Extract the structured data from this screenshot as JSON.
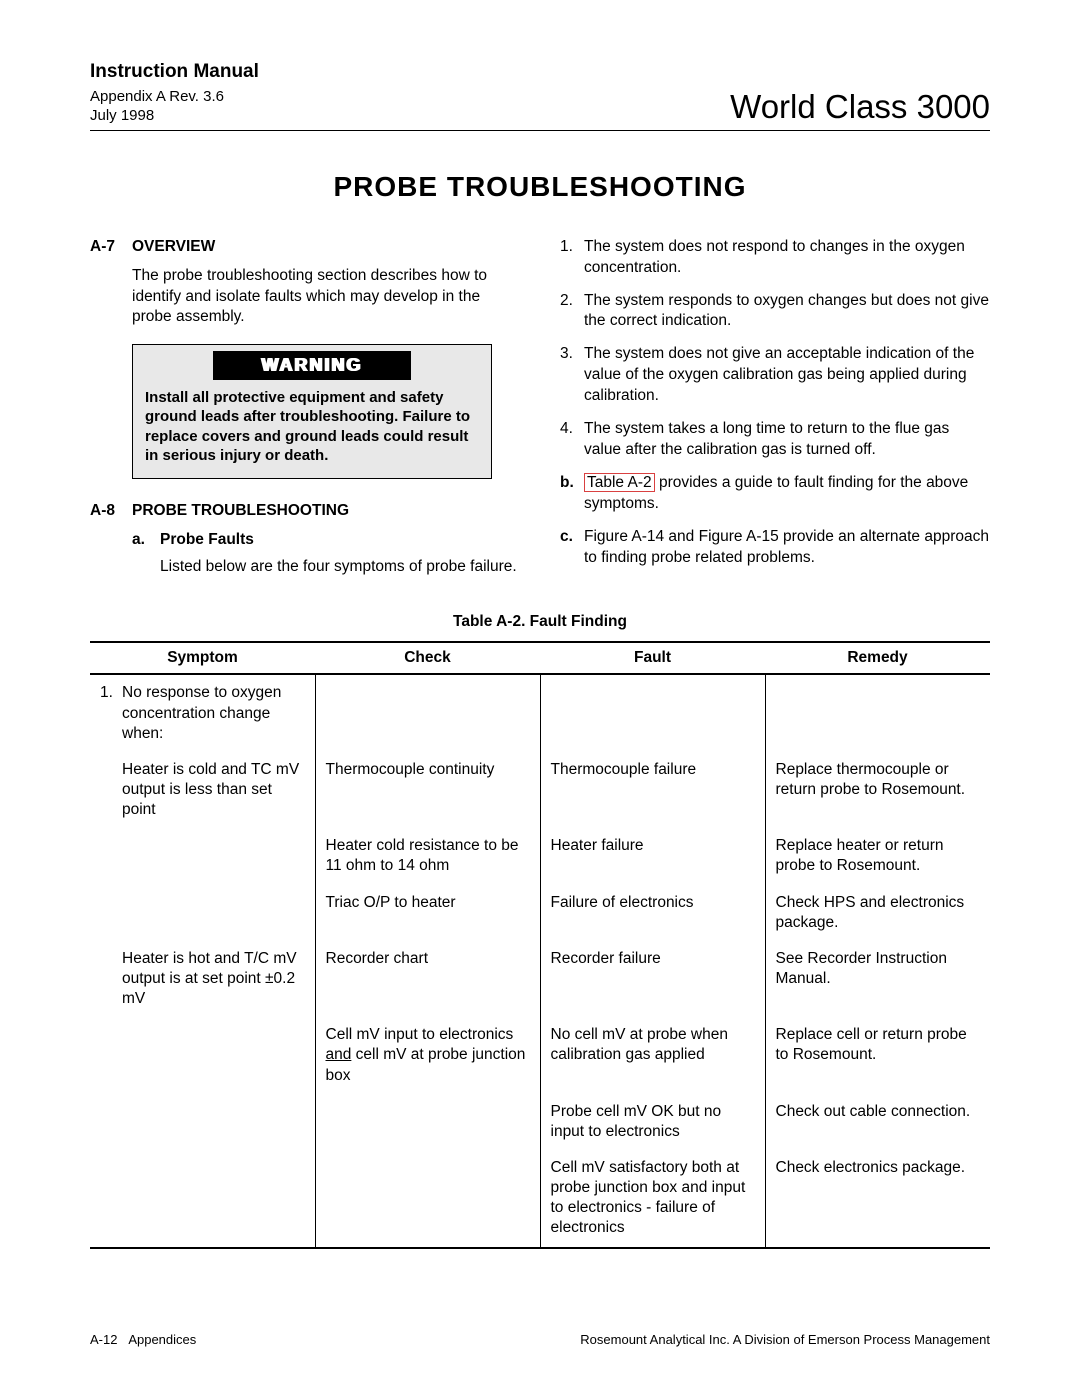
{
  "header": {
    "manual": "Instruction Manual",
    "appendix": "Appendix A  Rev. 3.6",
    "date": "July 1998",
    "product": "World Class 3000"
  },
  "title": "PROBE  TROUBLESHOOTING",
  "secA7": {
    "num": "A-7",
    "title": "OVERVIEW",
    "body": "The probe troubleshooting section describes how to identify and isolate faults which may develop in the probe assembly."
  },
  "warning": {
    "label": "WARNING",
    "body": "Install all protective equipment and safety ground leads after troubleshooting. Failure to replace covers and ground leads could result in serious injury or death."
  },
  "secA8": {
    "num": "A-8",
    "title": "PROBE  TROUBLESHOOTING",
    "sub_a_label": "a.",
    "sub_a_title": "Probe Faults",
    "sub_a_body": "Listed below are the four symptoms of probe failure."
  },
  "symptoms": {
    "items": [
      {
        "n": "1.",
        "t": "The system does not respond to changes in the oxygen concentration."
      },
      {
        "n": "2.",
        "t": "The system responds to oxygen changes but does not give the correct indication."
      },
      {
        "n": "3.",
        "t": "The system does not give an acceptable indication of the value of the oxygen calibration gas being applied during calibration."
      },
      {
        "n": "4.",
        "t": "The system takes a long time to return to the flue gas value after the calibration gas is turned off."
      }
    ]
  },
  "notes": {
    "b_label": "b.",
    "b_ref": "Table A-2",
    "b_rest": " provides a guide to fault finding for the above symptoms.",
    "c_label": "c.",
    "c_text": "Figure A-14 and Figure A-15 provide an alternate approach to finding probe related problems."
  },
  "table": {
    "caption": "Table A-2.  Fault Finding",
    "headers": {
      "c1": "Symptom",
      "c2": "Check",
      "c3": "Fault",
      "c4": "Remedy"
    },
    "col_widths": [
      "25%",
      "25%",
      "25%",
      "25%"
    ],
    "rows": [
      {
        "symptom_n": "1.",
        "symptom": "No response to oxygen concentration change when:",
        "check": "",
        "fault": "",
        "remedy": ""
      },
      {
        "symptom_indent": "Heater is cold and TC mV output is less than set point",
        "check": "Thermocouple continuity",
        "fault": "Thermocouple failure",
        "remedy": "Replace thermocouple or return probe to Rosemount."
      },
      {
        "symptom_indent": "",
        "check": "Heater cold resistance to be 11 ohm to 14 ohm",
        "fault": "Heater failure",
        "remedy": "Replace heater or return probe to Rosemount."
      },
      {
        "symptom_indent": "",
        "check": "Triac O/P to heater",
        "fault": "Failure of electronics",
        "remedy": "Check HPS and electronics package."
      },
      {
        "symptom_indent": "Heater is hot and T/C mV output is at set point ±0.2 mV",
        "check": "Recorder chart",
        "fault": "Recorder failure",
        "remedy": "See Recorder Instruction Manual."
      },
      {
        "symptom_indent": "",
        "check_html": "Cell mV input to electronics <span class=\"und\">and</span> cell mV at probe junction box",
        "fault": "No cell mV at probe when calibration gas applied",
        "remedy": "Replace cell or return probe to Rosemount."
      },
      {
        "symptom_indent": "",
        "check": "",
        "fault": "Probe cell mV OK but no input to electronics",
        "remedy": "Check out cable connection."
      },
      {
        "symptom_indent": "",
        "check": "",
        "fault": "Cell mV satisfactory both at probe junction box and input to electronics - failure of electronics",
        "remedy": "Check electronics package."
      }
    ]
  },
  "footer": {
    "left_page": "A-12",
    "left_label": "Appendices",
    "right": "Rosemount Analytical Inc.    A Division of Emerson Process Management"
  }
}
